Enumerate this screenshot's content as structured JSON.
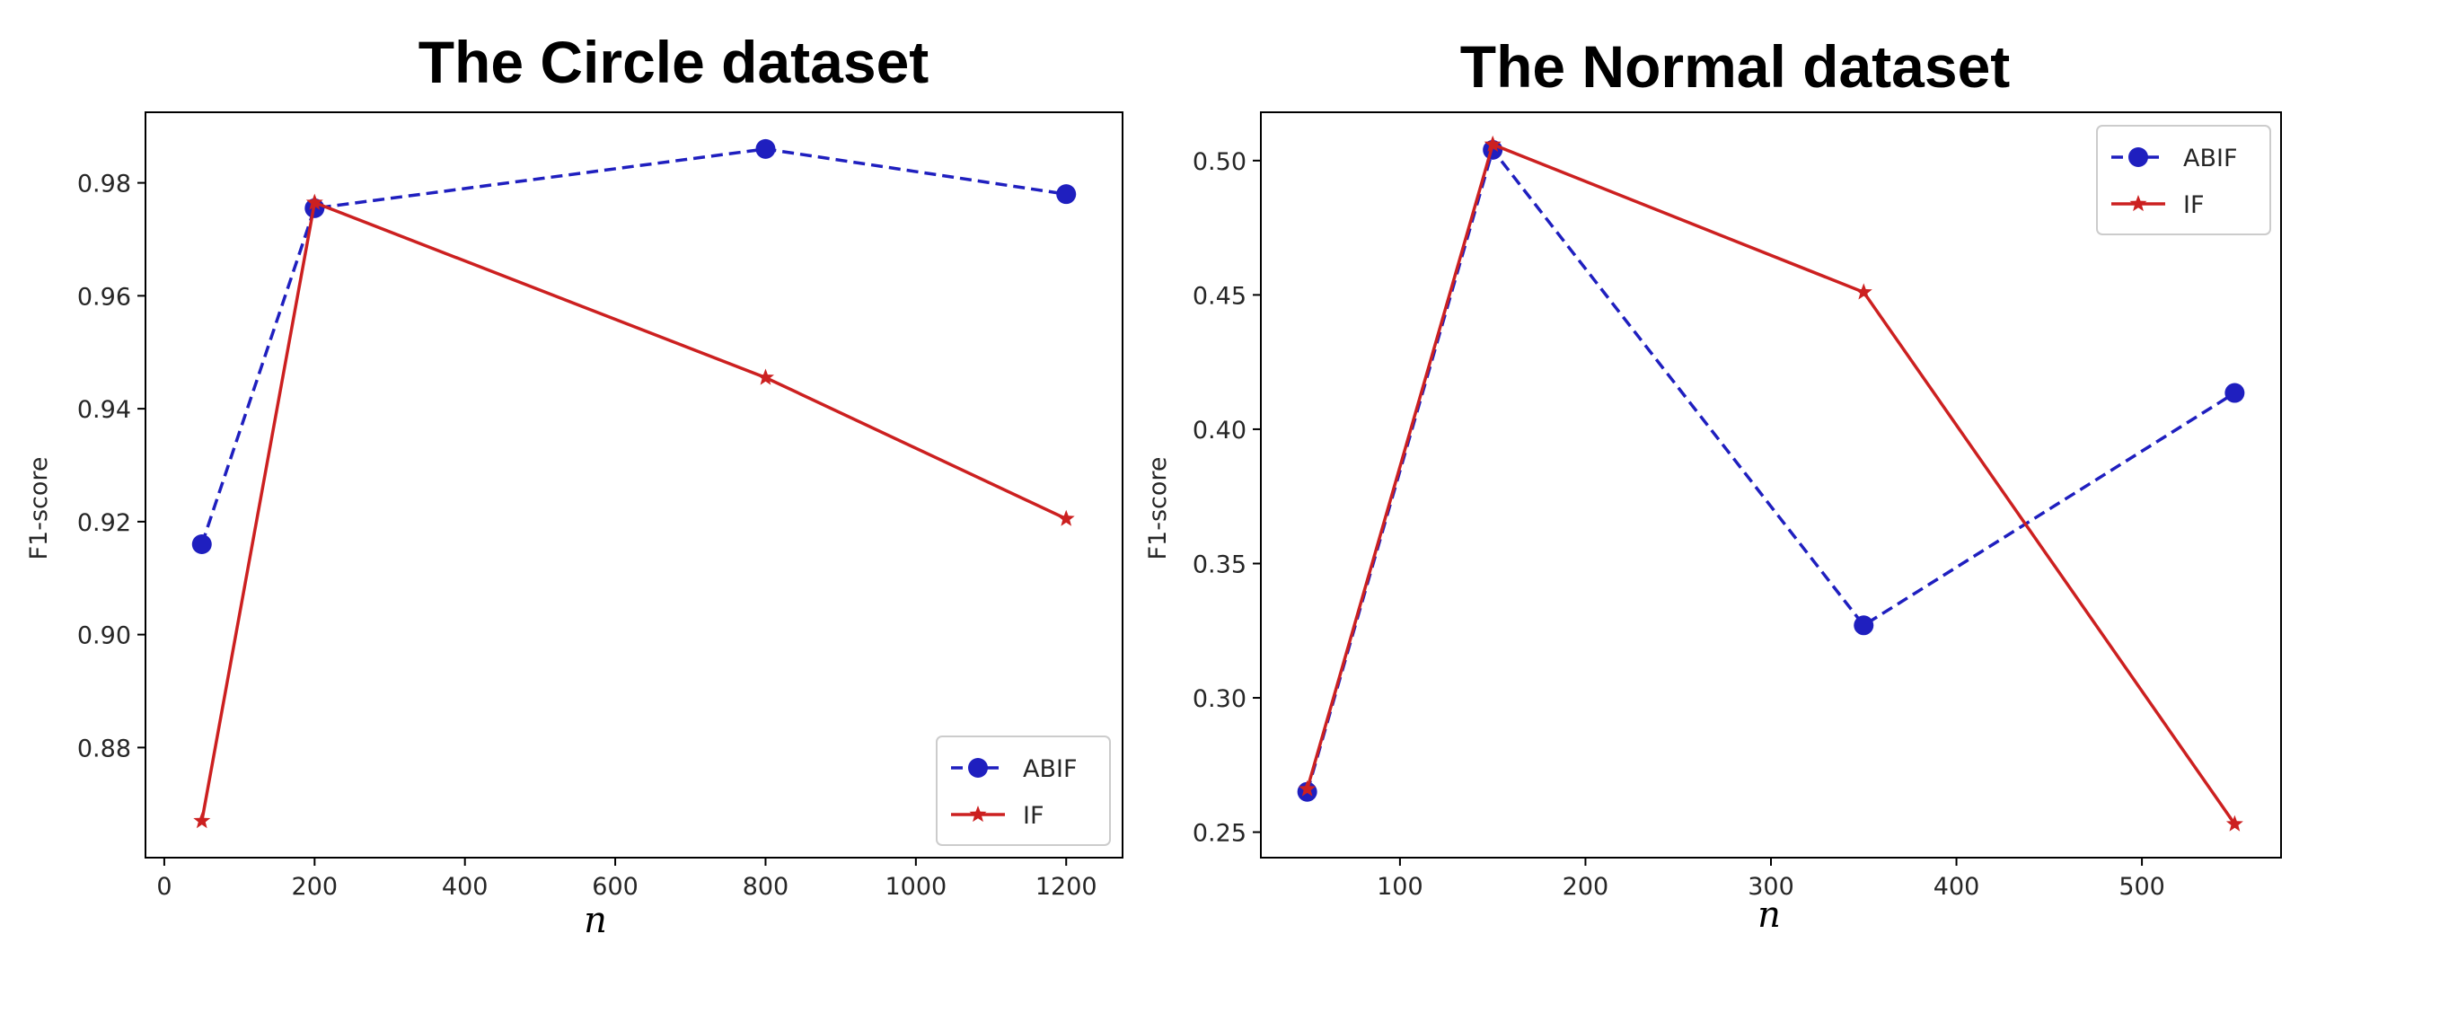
{
  "chart_data": [
    {
      "type": "line",
      "title": "The Circle dataset",
      "xlabel": "n",
      "ylabel": "F1-score",
      "xlim": [
        -25,
        1275
      ],
      "ylim": [
        0.8605,
        0.9925
      ],
      "xticks": [
        0,
        200,
        400,
        600,
        800,
        1000,
        1200
      ],
      "xtick_labels": [
        "0",
        "200",
        "400",
        "600",
        "800",
        "1000",
        "1200"
      ],
      "yticks": [
        0.88,
        0.9,
        0.92,
        0.94,
        0.96,
        0.98
      ],
      "ytick_labels": [
        "0.88",
        "0.90",
        "0.92",
        "0.94",
        "0.96",
        "0.98"
      ],
      "legend_position": "lower-right",
      "series": [
        {
          "name": "ABIF",
          "color": "#1f1fbf",
          "marker": "circle",
          "dash": true,
          "x": [
            50,
            200,
            800,
            1200
          ],
          "y": [
            0.916,
            0.9755,
            0.986,
            0.978
          ]
        },
        {
          "name": "IF",
          "color": "#cc2020",
          "marker": "star",
          "dash": false,
          "x": [
            50,
            200,
            800,
            1200
          ],
          "y": [
            0.867,
            0.9765,
            0.9455,
            0.9205
          ]
        }
      ]
    },
    {
      "type": "line",
      "title": "The Normal dataset",
      "xlabel": "n",
      "ylabel": "F1-score",
      "xlim": [
        25,
        575
      ],
      "ylim": [
        0.2405,
        0.518
      ],
      "xticks": [
        100,
        200,
        300,
        400,
        500
      ],
      "xtick_labels": [
        "100",
        "200",
        "300",
        "400",
        "500"
      ],
      "yticks": [
        0.25,
        0.3,
        0.35,
        0.4,
        0.45,
        0.5
      ],
      "ytick_labels": [
        "0.25",
        "0.30",
        "0.35",
        "0.40",
        "0.45",
        "0.50"
      ],
      "legend_position": "upper-right",
      "series": [
        {
          "name": "ABIF",
          "color": "#1f1fbf",
          "marker": "circle",
          "dash": true,
          "x": [
            50,
            150,
            350,
            550
          ],
          "y": [
            0.265,
            0.504,
            0.327,
            0.4135
          ]
        },
        {
          "name": "IF",
          "color": "#cc2020",
          "marker": "star",
          "dash": false,
          "x": [
            50,
            150,
            350,
            550
          ],
          "y": [
            0.266,
            0.506,
            0.451,
            0.253
          ]
        }
      ]
    }
  ]
}
